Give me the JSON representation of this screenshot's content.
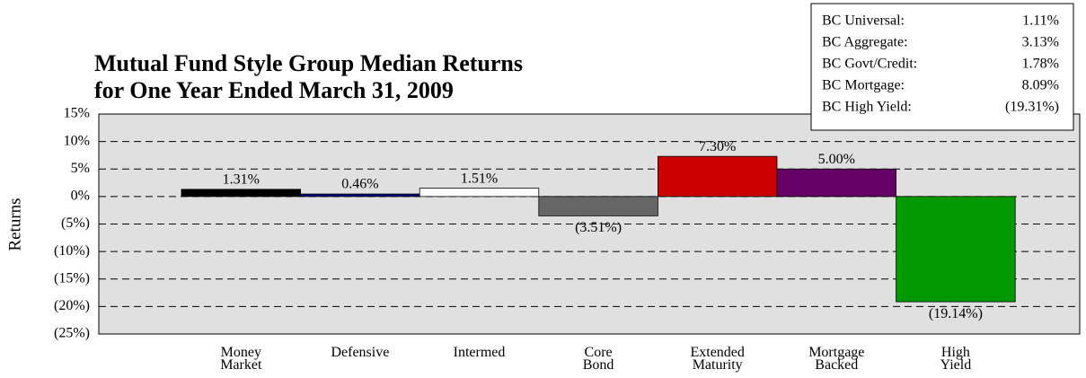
{
  "chart_data": {
    "type": "bar",
    "title": [
      "Mutual Fund Style Group Median Returns",
      "for One Year Ended March 31, 2009"
    ],
    "y_label": "Returns",
    "categories": [
      "Money Market",
      "Defensive",
      "Intermed",
      "Core Bond",
      "Extended Maturity",
      "Mortgage Backed",
      "High Yield"
    ],
    "values": [
      1.31,
      0.46,
      1.51,
      -3.51,
      7.3,
      5.0,
      -19.14
    ],
    "value_labels": [
      "1.31%",
      "0.46%",
      "1.51%",
      "(3.51%)",
      "7.30%",
      "5.00%",
      "(19.14%)"
    ],
    "colors": [
      "#000000",
      "#000080",
      "#ffffff",
      "#666666",
      "#cc0000",
      "#660066",
      "#009900"
    ],
    "negative_label_color": "#ff0000",
    "ylim": [
      -25,
      15
    ],
    "yticks": [
      {
        "value": 15,
        "label": "15%"
      },
      {
        "value": 10,
        "label": "10%"
      },
      {
        "value": 5,
        "label": "5%"
      },
      {
        "value": 0,
        "label": "0%"
      },
      {
        "value": -5,
        "label": "(5%)"
      },
      {
        "value": -10,
        "label": "(10%)"
      },
      {
        "value": -15,
        "label": "(15%)"
      },
      {
        "value": -20,
        "label": "(20%)"
      },
      {
        "value": -25,
        "label": "(25%)"
      }
    ],
    "grid": true,
    "benchmarks": {
      "names": [
        "BC Universal:",
        "BC Aggregate:",
        "BC Govt/Credit:",
        "BC Mortgage:",
        "BC High Yield:"
      ],
      "values": [
        1.11,
        3.13,
        1.78,
        8.09,
        -19.31
      ],
      "value_labels": [
        "1.11%",
        "3.13%",
        "1.78%",
        "8.09%",
        "(19.31%)"
      ]
    }
  }
}
